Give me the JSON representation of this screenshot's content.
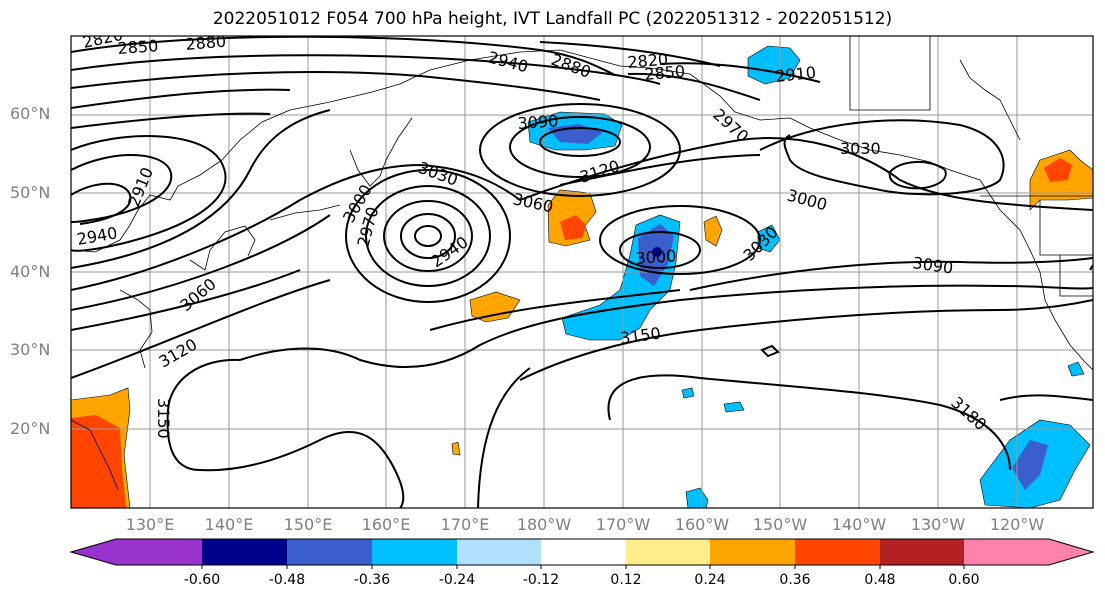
{
  "title": "2022051012 F054 700 hPa height, IVT Landfall PC (2022051312 - 2022051512)",
  "lat_labels": [
    "60°N",
    "50°N",
    "40°N",
    "30°N",
    "20°N"
  ],
  "lon_labels": [
    "130°E",
    "140°E",
    "150°E",
    "160°E",
    "170°E",
    "180°W",
    "170°W",
    "160°W",
    "150°W",
    "140°W",
    "130°W",
    "120°W"
  ],
  "colorbar": {
    "ticks": [
      "-0.60",
      "-0.48",
      "-0.36",
      "-0.24",
      "-0.12",
      "0.12",
      "0.24",
      "0.36",
      "0.48",
      "0.60"
    ],
    "colors": [
      "#9932cc",
      "#00008b",
      "#3a5fcd",
      "#00bfff",
      "#b0e2ff",
      "#ffffff",
      "#ffec8b",
      "#ffa500",
      "#ff4500",
      "#b22222",
      "#ff82ab"
    ]
  },
  "contour_labels": [
    "2820",
    "2850",
    "2880",
    "2940",
    "2880",
    "2820",
    "2850",
    "2910",
    "2970",
    "3090",
    "3120",
    "3030",
    "3060",
    "3000",
    "2940",
    "2970",
    "2910",
    "2940",
    "3060",
    "3120",
    "3000",
    "3030",
    "3150",
    "3000",
    "3090",
    "3180",
    "3150"
  ]
}
